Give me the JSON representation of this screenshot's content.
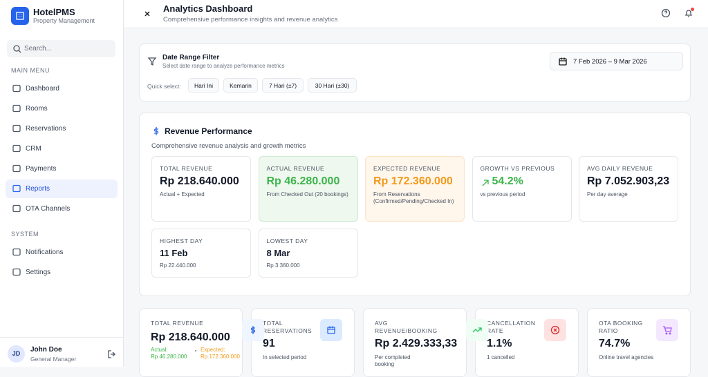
{
  "sidebar": {
    "brand": "HotelPMS",
    "tagline": "Property Management",
    "search": "Search...",
    "sections": [
      {
        "title": "MAIN MENU",
        "items": [
          "Dashboard",
          "Rooms",
          "Reservations",
          "CRM",
          "Payments",
          "Reports",
          "OTA Channels"
        ]
      },
      {
        "title": "SYSTEM",
        "items": [
          "Notifications",
          "Settings"
        ]
      }
    ],
    "user": {
      "initials": "JD",
      "name": "John Doe",
      "role": "General Manager"
    }
  },
  "header": {
    "title": "Analytics Dashboard",
    "subtitle": "Comprehensive performance insights and revenue analytics"
  },
  "filter": {
    "title": "Date Range Filter",
    "subtitle": "Select date range to analyze performance metrics",
    "date_range": "7 Feb 2026 – 9 Mar 2026",
    "quick_label": "Quick select:",
    "quick_options": [
      "Hari Ini",
      "Kemarin",
      "7 Hari (±7)",
      "30 Hari (±30)"
    ]
  },
  "revenue": {
    "title": "Revenue Performance",
    "subtitle": "Comprehensive revenue analysis and growth metrics",
    "metrics": [
      {
        "label": "TOTAL REVENUE",
        "value": "Rp 218.640.000",
        "note": "Actual + Expected"
      },
      {
        "label": "ACTUAL REVENUE",
        "value": "Rp 46.280.000",
        "note": "From Checked Out (20 bookings)"
      },
      {
        "label": "EXPECTED REVENUE",
        "value": "Rp 172.360.000",
        "note": "From Reservations (Confirmed/Pending/Checked In)"
      },
      {
        "label": "GROWTH VS PREVIOUS",
        "value": "54.2%",
        "note": "vs previous period"
      },
      {
        "label": "AVG DAILY REVENUE",
        "value": "Rp 7.052.903,23",
        "note": "Per day average"
      },
      {
        "label": "HIGHEST DAY",
        "value": "11 Feb",
        "note": "Rp 22.440.000"
      },
      {
        "label": "LOWEST DAY",
        "value": "8 Mar",
        "note": "Rp 3.360.000"
      }
    ]
  },
  "summary": {
    "cards": [
      {
        "label": "TOTAL REVENUE",
        "value": "Rp 218.640.000",
        "details": [
          {
            "label": "Actual:",
            "value": "Rp 46.280.000"
          },
          {
            "label": "Expected:",
            "value": "Rp 172.360.000"
          }
        ]
      },
      {
        "label": "TOTAL RESERVATIONS",
        "value": "91",
        "note": "In selected period"
      },
      {
        "label": "AVG REVENUE/BOOKING",
        "value": "Rp 2.429.333,33",
        "note": "Per completed booking"
      },
      {
        "label": "CANCELLATION RATE",
        "value": "1.1%",
        "note": "1 cancelled"
      },
      {
        "label": "OTA BOOKING RATIO",
        "value": "74.7%",
        "note": "Online travel agencies"
      }
    ]
  }
}
